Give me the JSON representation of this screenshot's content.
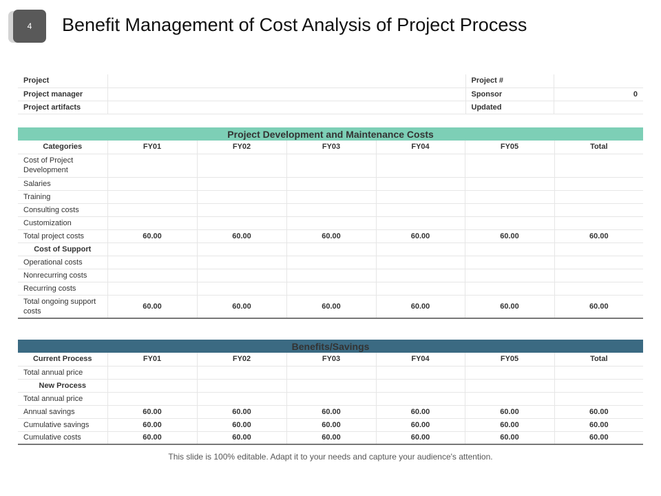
{
  "slide_number": "4",
  "title": "Benefit Management of Cost Analysis of Project Process",
  "info": [
    {
      "label": "Project",
      "value": "",
      "label2": "Project #",
      "value2": ""
    },
    {
      "label": "Project manager",
      "value": "",
      "label2": "Sponsor",
      "value2": "0"
    },
    {
      "label": "Project artifacts",
      "value": "",
      "label2": "Updated",
      "value2": ""
    }
  ],
  "costs": {
    "band": "Project Development and Maintenance Costs",
    "headers": [
      "Categories",
      "FY01",
      "FY02",
      "FY03",
      "FY04",
      "FY05",
      "Total"
    ],
    "rows": [
      {
        "label": "Cost of Project Development",
        "values": [
          "",
          "",
          "",
          "",
          "",
          ""
        ],
        "tall": true
      },
      {
        "label": "Salaries",
        "values": [
          "",
          "",
          "",
          "",
          "",
          ""
        ]
      },
      {
        "label": "Training",
        "values": [
          "",
          "",
          "",
          "",
          "",
          ""
        ]
      },
      {
        "label": "Consulting costs",
        "values": [
          "",
          "",
          "",
          "",
          "",
          ""
        ]
      },
      {
        "label": "Customization",
        "values": [
          "",
          "",
          "",
          "",
          "",
          ""
        ]
      },
      {
        "label": "Total project costs",
        "values": [
          "60.00",
          "60.00",
          "60.00",
          "60.00",
          "60.00",
          "60.00"
        ]
      },
      {
        "label": "Cost of Support",
        "values": [
          "",
          "",
          "",
          "",
          "",
          ""
        ],
        "section": true
      },
      {
        "label": "Operational costs",
        "values": [
          "",
          "",
          "",
          "",
          "",
          ""
        ]
      },
      {
        "label": "Nonrecurring costs",
        "values": [
          "",
          "",
          "",
          "",
          "",
          ""
        ]
      },
      {
        "label": "Recurring costs",
        "values": [
          "",
          "",
          "",
          "",
          "",
          ""
        ]
      },
      {
        "label": "Total ongoing support costs",
        "values": [
          "60.00",
          "60.00",
          "60.00",
          "60.00",
          "60.00",
          "60.00"
        ],
        "tall": true
      }
    ]
  },
  "benefits": {
    "band": "Benefits/Savings",
    "headers": [
      "Current Process",
      "FY01",
      "FY02",
      "FY03",
      "FY04",
      "FY05",
      "Total"
    ],
    "rows": [
      {
        "label": "Total annual price",
        "values": [
          "",
          "",
          "",
          "",
          "",
          ""
        ]
      },
      {
        "label": "New Process",
        "values": [
          "",
          "",
          "",
          "",
          "",
          ""
        ],
        "section": true
      },
      {
        "label": "Total annual price",
        "values": [
          "",
          "",
          "",
          "",
          "",
          ""
        ]
      },
      {
        "label": "Annual savings",
        "values": [
          "60.00",
          "60.00",
          "60.00",
          "60.00",
          "60.00",
          "60.00"
        ]
      },
      {
        "label": "Cumulative savings",
        "values": [
          "60.00",
          "60.00",
          "60.00",
          "60.00",
          "60.00",
          "60.00"
        ]
      },
      {
        "label": "Cumulative costs",
        "values": [
          "60.00",
          "60.00",
          "60.00",
          "60.00",
          "60.00",
          "60.00"
        ]
      }
    ]
  },
  "footer": "This slide is 100% editable. Adapt it to your needs and capture your audience's attention."
}
